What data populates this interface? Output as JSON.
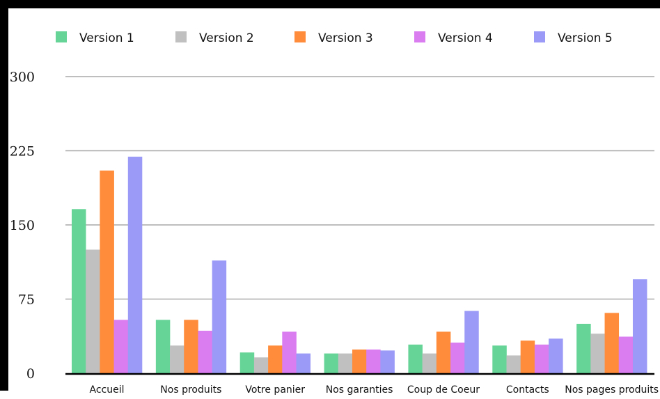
{
  "chart_data": {
    "type": "bar",
    "categories": [
      "Accueil",
      "Nos produits",
      "Votre panier",
      "Nos garanties",
      "Coup de Coeur",
      "Contacts",
      "Nos pages produits"
    ],
    "series": [
      {
        "name": "Version 1",
        "color": "#66d497",
        "values": [
          166,
          54,
          21,
          20,
          29,
          28,
          50
        ]
      },
      {
        "name": "Version 2",
        "color": "#c0c0c0",
        "values": [
          125,
          28,
          16,
          20,
          20,
          18,
          40
        ]
      },
      {
        "name": "Version 3",
        "color": "#ff8c3a",
        "values": [
          205,
          54,
          28,
          24,
          42,
          33,
          61
        ]
      },
      {
        "name": "Version 4",
        "color": "#d97df0",
        "values": [
          54,
          43,
          42,
          24,
          31,
          29,
          37
        ]
      },
      {
        "name": "Version 5",
        "color": "#9b9bf7",
        "values": [
          219,
          114,
          20,
          23,
          63,
          35,
          95
        ]
      }
    ],
    "ylim": [
      0,
      300
    ],
    "yticks": [
      "0",
      "75",
      "150",
      "225",
      "300"
    ],
    "ytick_values": [
      0,
      75,
      150,
      225,
      300
    ],
    "grid": true,
    "legend_position": "top"
  }
}
